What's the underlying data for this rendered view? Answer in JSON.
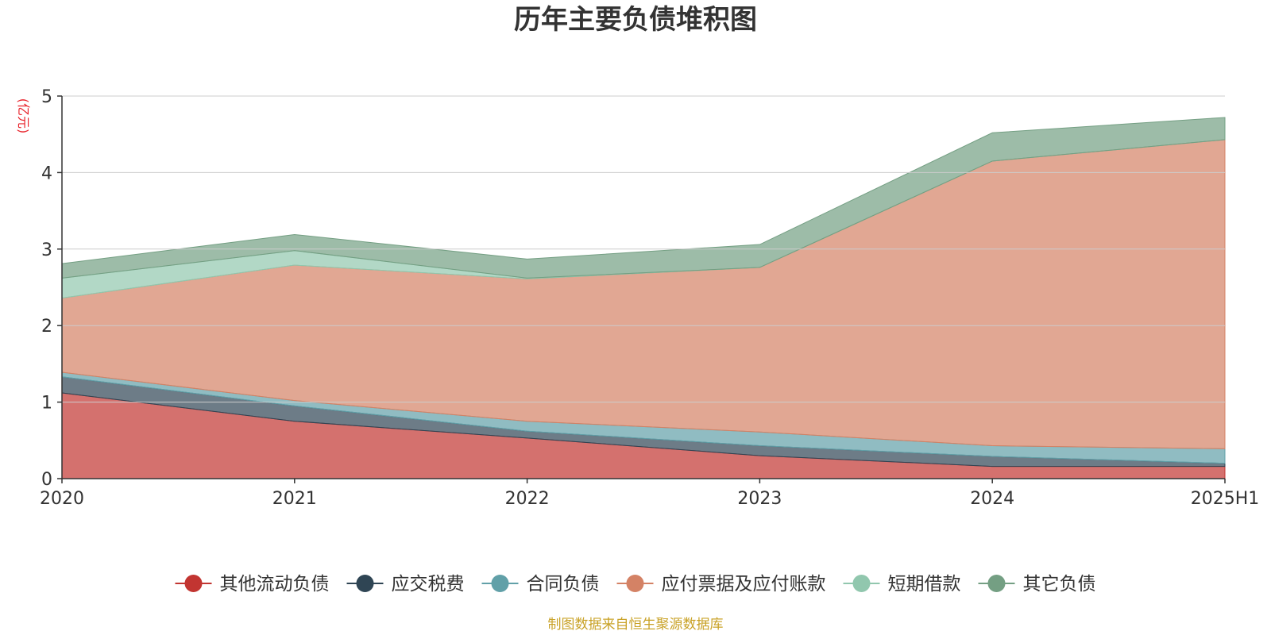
{
  "chart_data": {
    "type": "area",
    "stacked": true,
    "title": "历年主要负债堆积图",
    "ylabel": "(亿元)",
    "xlabel": "",
    "categories": [
      "2020",
      "2021",
      "2022",
      "2023",
      "2024",
      "2025H1"
    ],
    "ylim": [
      0,
      5
    ],
    "yticks": [
      "0",
      "1",
      "2",
      "3",
      "4",
      "5"
    ],
    "grid": true,
    "legend_position": "bottom",
    "series": [
      {
        "name": "其他流动负债",
        "color": "#c23531",
        "values": [
          1.12,
          0.75,
          0.53,
          0.3,
          0.16,
          0.16
        ]
      },
      {
        "name": "应交税费",
        "color": "#2f4554",
        "values": [
          0.21,
          0.2,
          0.09,
          0.13,
          0.13,
          0.04
        ]
      },
      {
        "name": "合同负债",
        "color": "#61a0a8",
        "values": [
          0.06,
          0.07,
          0.13,
          0.18,
          0.14,
          0.19
        ]
      },
      {
        "name": "应付票据及应付账款",
        "color": "#d48265",
        "values": [
          0.97,
          1.77,
          1.86,
          2.15,
          3.72,
          4.04
        ]
      },
      {
        "name": "短期借款",
        "color": "#91c7ae",
        "values": [
          0.26,
          0.19,
          0.01,
          0.0,
          0.0,
          0.0
        ]
      },
      {
        "name": "其它负债",
        "color": "#749f83",
        "values": [
          0.19,
          0.21,
          0.25,
          0.3,
          0.37,
          0.29
        ]
      }
    ]
  },
  "source_text": "制图数据来自恒生聚源数据库",
  "colors": {
    "unit": "#e8232b",
    "source": "#c9a227",
    "grid": "#cccccc",
    "axis": "#333333"
  }
}
